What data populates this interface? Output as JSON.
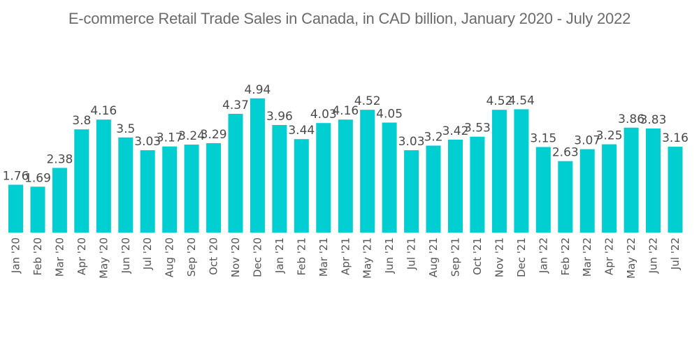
{
  "chart_data": {
    "type": "bar",
    "title": "E-commerce Retail Trade Sales in Canada, in CAD billion, January 2020 - July 2022",
    "xlabel": "",
    "ylabel": "",
    "ylim": [
      0,
      5
    ],
    "grid": false,
    "legend": null,
    "bar_color": "#00ced1",
    "categories": [
      "Jan '20",
      "Feb '20",
      "Mar '20",
      "Apr '20",
      "May '20",
      "Jun '20",
      "Jul '20",
      "Aug '20",
      "Sep '20",
      "Oct '20",
      "Nov '20",
      "Dec '20",
      "Jan '21",
      "Feb '21",
      "Mar '21",
      "Apr '21",
      "May '21",
      "Jun '21",
      "Jul '21",
      "Aug '21",
      "Sep '21",
      "Oct '21",
      "Nov '21",
      "Dec '21",
      "Jan '22",
      "Feb '22",
      "Mar '22",
      "Apr '22",
      "May '22",
      "Jun '22",
      "Jul '22"
    ],
    "values": [
      1.76,
      1.69,
      2.38,
      3.8,
      4.16,
      3.5,
      3.03,
      3.17,
      3.24,
      3.29,
      4.37,
      4.94,
      3.96,
      3.44,
      4.03,
      4.16,
      4.52,
      4.05,
      3.03,
      3.2,
      3.42,
      3.53,
      4.52,
      4.54,
      3.15,
      2.63,
      3.07,
      3.25,
      3.86,
      3.83,
      3.16
    ],
    "data_labels": [
      "1.76",
      "1.69",
      "2.38",
      "3.8",
      "4.16",
      "3.5",
      "3.03",
      "3.17",
      "3.24",
      "3.29",
      "4.37",
      "4.94",
      "3.96",
      "3.44",
      "4.03",
      "4.16",
      "4.52",
      "4.05",
      "3.03",
      "3.2",
      "3.42",
      "3.53",
      "4.52",
      "4.54",
      "3.15",
      "2.63",
      "3.07",
      "3.25",
      "3.86",
      "3.83",
      "3.16"
    ]
  }
}
